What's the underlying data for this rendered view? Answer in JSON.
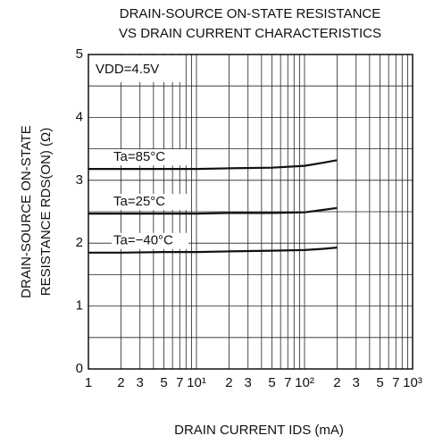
{
  "chart_data": {
    "type": "line",
    "title": [
      "DRAIN-SOURCE ON-STATE RESISTANCE",
      "VS DRAIN CURRENT CHARACTERISTICS"
    ],
    "ylabel": [
      "DRAIN-SOURCE ON-STATE",
      "RESISTANCE  RDS(ON) (Ω)"
    ],
    "xlabel": "DRAIN CURRENT  IDS (mA)",
    "annotation": "VDD=4.5V",
    "xscale": "log",
    "grid": true,
    "color": "#111111",
    "x": [
      1,
      2,
      5,
      10,
      20,
      50,
      100,
      150,
      200
    ],
    "series": [
      {
        "name": "Ta=85°C",
        "color": "#111111",
        "values": [
          3.18,
          3.18,
          3.18,
          3.18,
          3.19,
          3.2,
          3.23,
          3.28,
          3.32
        ]
      },
      {
        "name": "Ta=25°C",
        "color": "#111111",
        "values": [
          2.47,
          2.47,
          2.47,
          2.47,
          2.48,
          2.48,
          2.49,
          2.53,
          2.56
        ]
      },
      {
        "name": "Ta=−40°C",
        "color": "#111111",
        "values": [
          1.85,
          1.85,
          1.86,
          1.86,
          1.87,
          1.88,
          1.89,
          1.91,
          1.93
        ]
      }
    ],
    "xlim": [
      1,
      1000
    ],
    "xticks": [
      1,
      2,
      3,
      5,
      7,
      {
        "value": 10,
        "label": "10¹"
      },
      {
        "value": 20,
        "label": "2"
      },
      {
        "value": 30,
        "label": "3"
      },
      {
        "value": 50,
        "label": "5"
      },
      {
        "value": 70,
        "label": "7"
      },
      {
        "value": 100,
        "label": "10²"
      },
      {
        "value": 200,
        "label": "2"
      },
      {
        "value": 300,
        "label": "3"
      },
      {
        "value": 500,
        "label": "5"
      },
      {
        "value": 700,
        "label": "7"
      },
      {
        "value": 1000,
        "label": "10³"
      }
    ],
    "x_minor_ticks": [
      4,
      6,
      8,
      9,
      40,
      60,
      80,
      90,
      400,
      600,
      800,
      900
    ],
    "ylim": [
      0,
      5
    ],
    "yticks": [
      0,
      1,
      2,
      3,
      4,
      5
    ],
    "y_minor_ticks": [
      0.5,
      1.5,
      2.5,
      3.5,
      4.5
    ]
  }
}
